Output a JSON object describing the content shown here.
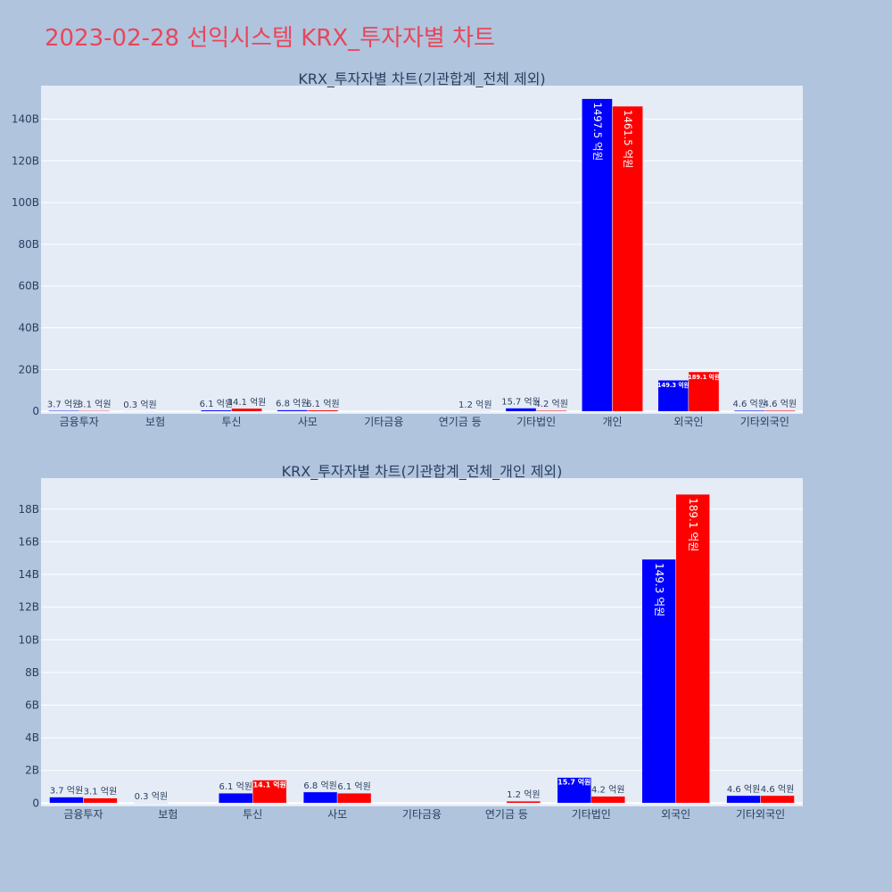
{
  "page_title": "2023-02-28 선익시스템 KRX_투자자별 차트",
  "colors": {
    "title": "#e8465a",
    "buy": "#0000ff",
    "sell": "#ff0000",
    "plot_bg": "#e5ecf6",
    "page_bg": "#b0c4de"
  },
  "chart_data": [
    {
      "type": "bar",
      "title": "KRX_투자자별 차트(기관합계_전체 제외)",
      "categories": [
        "금융투자",
        "보험",
        "투신",
        "사모",
        "기타금융",
        "연기금 등",
        "기타법인",
        "개인",
        "외국인",
        "기타외국인"
      ],
      "series": [
        {
          "color": "#0000ff",
          "values": [
            0.37,
            0.03,
            0.61,
            0.68,
            0,
            0,
            1.57,
            149.75,
            14.93,
            0.46
          ],
          "labels": [
            "3.7 억원",
            "0.3 억원",
            "6.1 억원",
            "6.8 억원",
            "",
            "",
            "15.7 억원",
            "1497.5 억원",
            "149.3 억원",
            "4.6 억원"
          ]
        },
        {
          "color": "#ff0000",
          "values": [
            0.31,
            0,
            1.41,
            0.61,
            0,
            0.12,
            0.42,
            146.15,
            18.91,
            0.46
          ],
          "labels": [
            "3.1 억원",
            "",
            "14.1 억원",
            "6.1 억원",
            "",
            "1.2 억원",
            "4.2 억원",
            "1461.5 억원",
            "189.1 억원",
            "4.6 억원"
          ]
        }
      ],
      "y_ticks": [
        0,
        20,
        40,
        60,
        80,
        100,
        120,
        140
      ],
      "y_tick_labels": [
        "0",
        "20B",
        "40B",
        "60B",
        "80B",
        "100B",
        "120B",
        "140B"
      ],
      "ylim": [
        -1.2,
        156
      ],
      "grid": true,
      "legend": "none"
    },
    {
      "type": "bar",
      "title": "KRX_투자자별 차트(기관합계_전체_개인 제외)",
      "categories": [
        "금융투자",
        "보험",
        "투신",
        "사모",
        "기타금융",
        "연기금 등",
        "기타법인",
        "외국인",
        "기타외국인"
      ],
      "series": [
        {
          "color": "#0000ff",
          "values": [
            0.37,
            0.03,
            0.61,
            0.68,
            0,
            0,
            1.57,
            14.93,
            0.46
          ],
          "labels": [
            "3.7 억원",
            "0.3 억원",
            "6.1 억원",
            "6.8 억원",
            "",
            "",
            "15.7 억원",
            "149.3 억원",
            "4.6 억원"
          ]
        },
        {
          "color": "#ff0000",
          "values": [
            0.31,
            0,
            1.41,
            0.61,
            0,
            0.12,
            0.42,
            18.91,
            0.46
          ],
          "labels": [
            "3.1 억원",
            "",
            "14.1 억원",
            "6.1 억원",
            "",
            "1.2 억원",
            "4.2 억원",
            "189.1 억원",
            "4.6 억원"
          ]
        }
      ],
      "y_ticks": [
        0,
        2,
        4,
        6,
        8,
        10,
        12,
        14,
        16,
        18
      ],
      "y_tick_labels": [
        "0",
        "2B",
        "4B",
        "6B",
        "8B",
        "10B",
        "12B",
        "14B",
        "16B",
        "18B"
      ],
      "ylim": [
        -0.2,
        19.9
      ],
      "grid": true,
      "legend": "none"
    }
  ]
}
